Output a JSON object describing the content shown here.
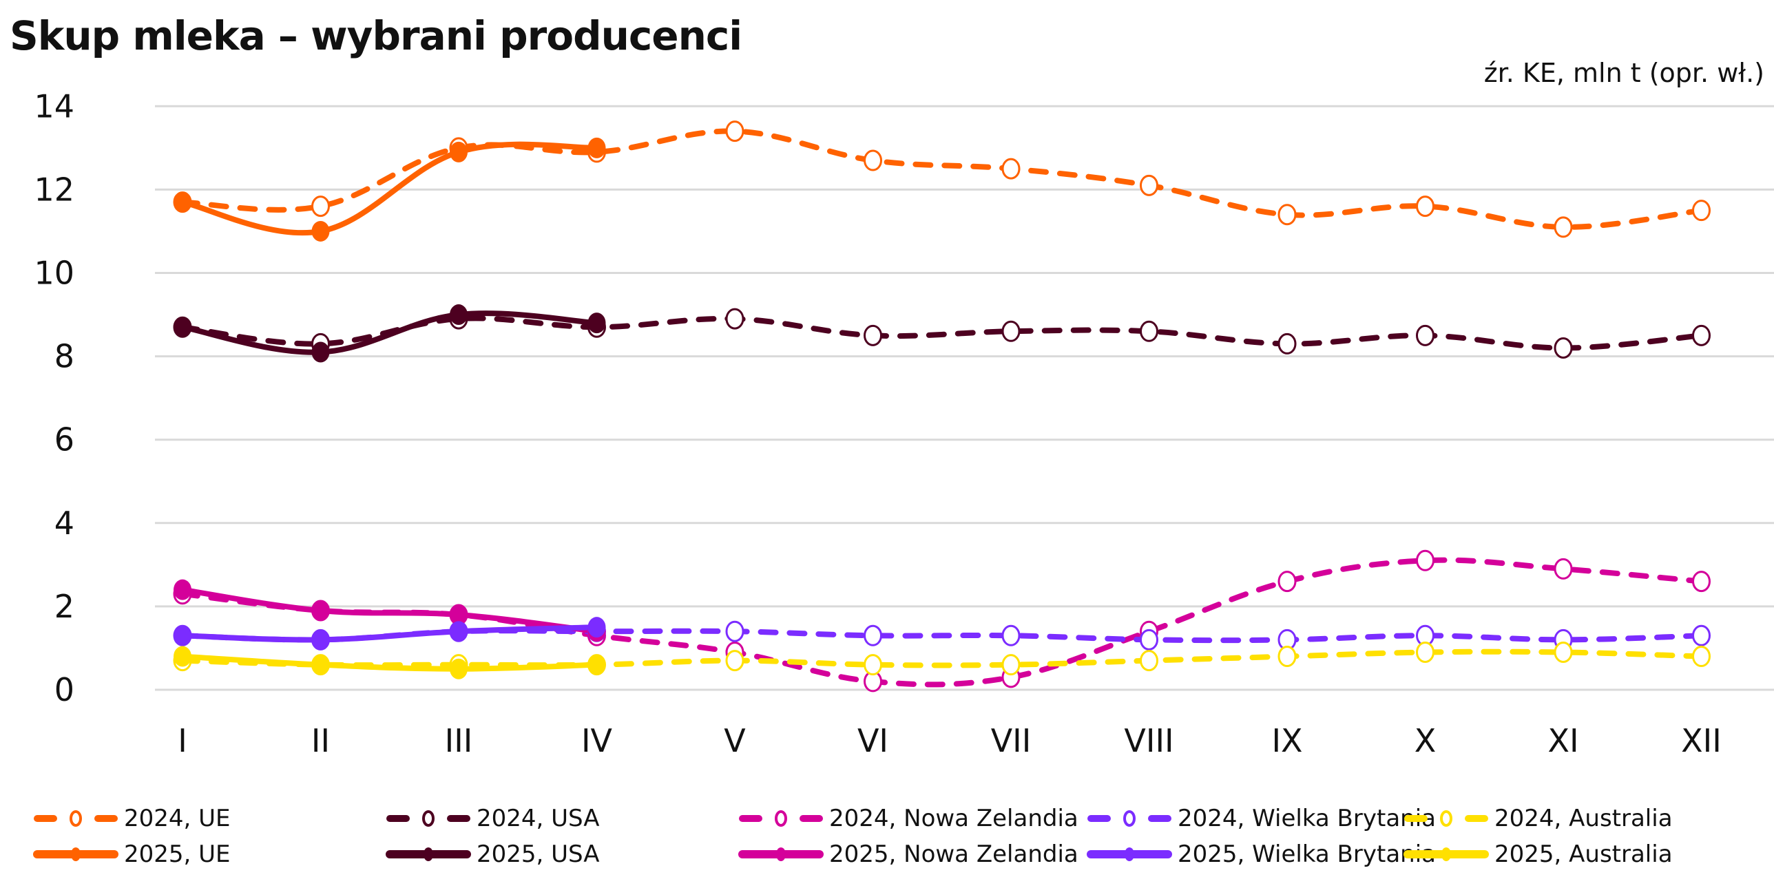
{
  "chart_data": {
    "type": "line",
    "title": "Skup mleka – wybrani producenci",
    "subtitle": "źr. KE, mln t (opr. wł.)",
    "xlabel": "",
    "ylabel": "",
    "x": [
      "I",
      "II",
      "III",
      "IV",
      "V",
      "VI",
      "VII",
      "VIII",
      "IX",
      "X",
      "XI",
      "XII"
    ],
    "ylim": [
      0,
      14
    ],
    "yticks": [
      0,
      2,
      4,
      6,
      8,
      10,
      12,
      14
    ],
    "grid": true,
    "legend_position": "bottom",
    "series": [
      {
        "name": "2024, UE",
        "color": "#FF6200",
        "style": "dashed",
        "marker": "open",
        "values": [
          11.7,
          11.6,
          13.0,
          12.9,
          13.4,
          12.7,
          12.5,
          12.1,
          11.4,
          11.6,
          11.1,
          11.5
        ]
      },
      {
        "name": "2025, UE",
        "color": "#FF6200",
        "style": "solid",
        "marker": "filled",
        "values": [
          11.7,
          11.0,
          12.9,
          13.0
        ]
      },
      {
        "name": "2024, USA",
        "color": "#4D0020",
        "style": "dashed",
        "marker": "open",
        "values": [
          8.7,
          8.3,
          8.9,
          8.7,
          8.9,
          8.5,
          8.6,
          8.6,
          8.3,
          8.5,
          8.2,
          8.5
        ]
      },
      {
        "name": "2025, USA",
        "color": "#4D0020",
        "style": "solid",
        "marker": "filled",
        "values": [
          8.7,
          8.1,
          9.0,
          8.8
        ]
      },
      {
        "name": "2024, Nowa Zelandia",
        "color": "#D4009A",
        "style": "dashed",
        "marker": "open",
        "values": [
          2.3,
          1.9,
          1.8,
          1.3,
          0.9,
          0.2,
          0.3,
          1.4,
          2.6,
          3.1,
          2.9,
          2.6
        ]
      },
      {
        "name": "2025, Nowa Zelandia",
        "color": "#D4009A",
        "style": "solid",
        "marker": "filled",
        "values": [
          2.4,
          1.9,
          1.8,
          1.4
        ]
      },
      {
        "name": "2024, Wielka Brytania",
        "color": "#7B2CFF",
        "style": "dashed",
        "marker": "open",
        "values": [
          1.3,
          1.2,
          1.4,
          1.4,
          1.4,
          1.3,
          1.3,
          1.2,
          1.2,
          1.3,
          1.2,
          1.3
        ]
      },
      {
        "name": "2025, Wielka Brytania",
        "color": "#7B2CFF",
        "style": "solid",
        "marker": "filled",
        "values": [
          1.3,
          1.2,
          1.4,
          1.5
        ]
      },
      {
        "name": "2024, Australia",
        "color": "#FFE000",
        "style": "dashed",
        "marker": "open",
        "values": [
          0.7,
          0.6,
          0.6,
          0.6,
          0.7,
          0.6,
          0.6,
          0.7,
          0.8,
          0.9,
          0.9,
          0.8
        ]
      },
      {
        "name": "2025, Australia",
        "color": "#FFE000",
        "style": "solid",
        "marker": "filled",
        "values": [
          0.8,
          0.6,
          0.5,
          0.6
        ]
      }
    ]
  }
}
